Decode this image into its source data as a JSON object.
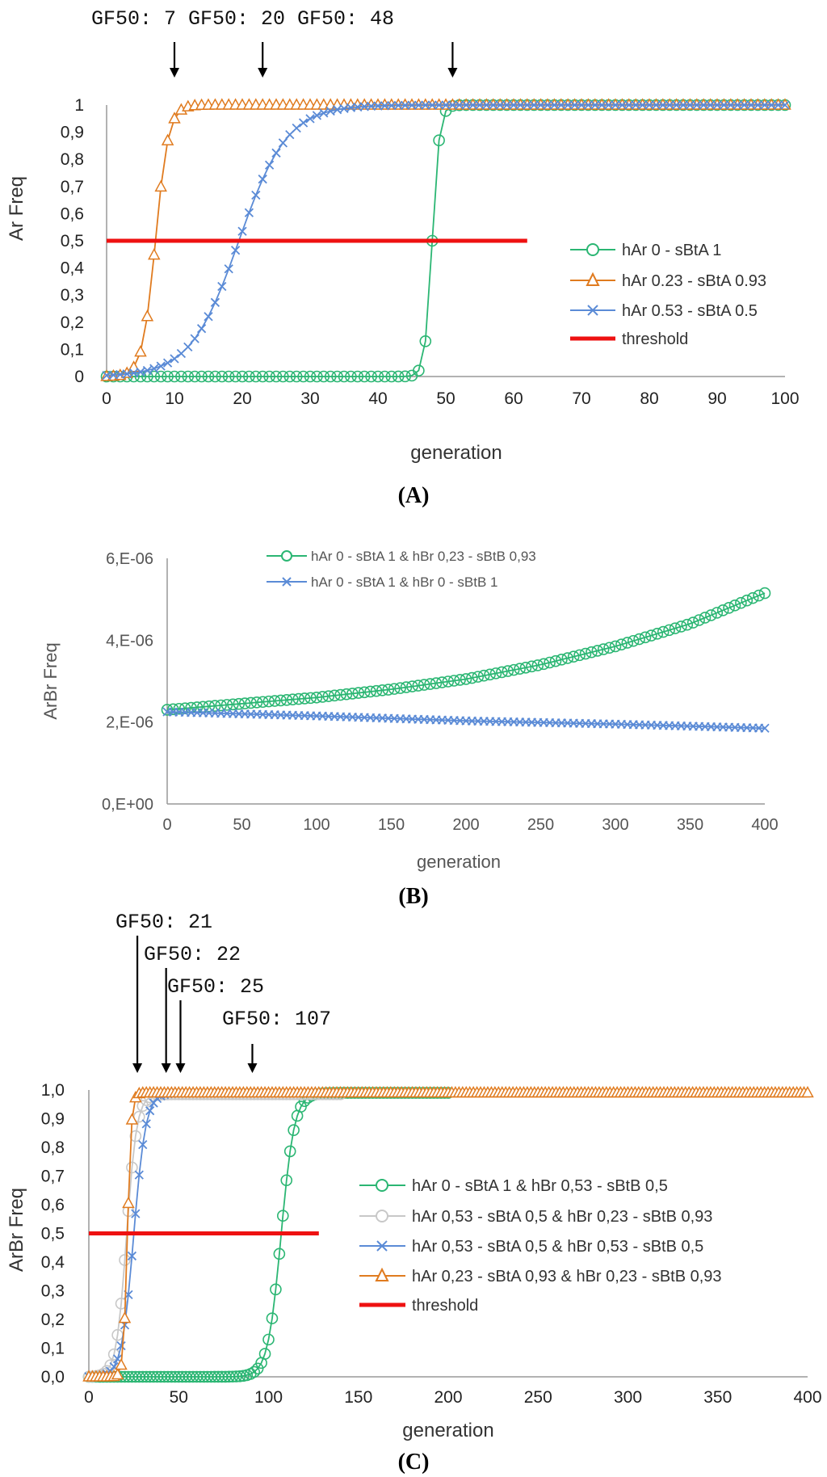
{
  "panels": {
    "a": {
      "label": "(A)"
    },
    "b": {
      "label": "(B)"
    },
    "c": {
      "label": "(C)"
    }
  },
  "chart_data": [
    {
      "panel": "A",
      "type": "line",
      "xlabel": "generation",
      "ylabel": "Ar Freq",
      "xlim": [
        0,
        100
      ],
      "ylim": [
        0,
        1
      ],
      "x_ticks": [
        "0",
        "10",
        "20",
        "30",
        "40",
        "50",
        "60",
        "70",
        "80",
        "90",
        "100"
      ],
      "y_ticks": [
        "0",
        "0,1",
        "0,2",
        "0,3",
        "0,4",
        "0,5",
        "0,6",
        "0,7",
        "0,8",
        "0,9",
        "1"
      ],
      "legend_position": "right",
      "threshold": {
        "name": "threshold",
        "y": 0.5,
        "x_range": [
          0,
          62
        ],
        "color": "#ee1111"
      },
      "annotations": [
        {
          "text": "GF50: 7",
          "x": 10
        },
        {
          "text": "GF50: 20",
          "x": 23
        },
        {
          "text": "GF50: 48",
          "x": 51
        }
      ],
      "annotation_line": "GF50: 7 GF50: 20 GF50: 48",
      "series": [
        {
          "name": "hAr 0 -  sBtA 1",
          "color": "#2bb673",
          "marker": "circle",
          "logistic": {
            "mid": 48,
            "rate": 1.9,
            "max": 1,
            "min": 0
          },
          "x_range": [
            0,
            100
          ]
        },
        {
          "name": "hAr 0.23 - sBtA 0.93",
          "color": "#e07b1f",
          "marker": "triangle",
          "logistic": {
            "mid": 7.2,
            "rate": 1.05,
            "max": 1,
            "min": 0
          },
          "x_range": [
            0,
            100
          ]
        },
        {
          "name": "hAr 0.53 - sBtA 0.5",
          "color": "#5b8bd6",
          "marker": "x",
          "logistic": {
            "mid": 19.5,
            "rate": 0.28,
            "max": 1,
            "min": 0
          },
          "x_range": [
            0,
            100
          ]
        }
      ]
    },
    {
      "panel": "B",
      "type": "line",
      "xlabel": "generation",
      "ylabel": "ArBr Freq",
      "xlim": [
        0,
        400
      ],
      "ylim": [
        0,
        6e-06
      ],
      "x_ticks": [
        "0",
        "50",
        "100",
        "150",
        "200",
        "250",
        "300",
        "350",
        "400"
      ],
      "y_ticks": [
        "0,E+00",
        "2,E-06",
        "4,E-06",
        "6,E-06"
      ],
      "legend_position": "top",
      "series": [
        {
          "name": "hAr 0 - sBtA 1 & hBr 0,23 - sBtB 0,93",
          "color": "#2bb673",
          "marker": "circle",
          "points": [
            [
              0,
              2.3e-06
            ],
            [
              50,
              2.45e-06
            ],
            [
              100,
              2.6e-06
            ],
            [
              150,
              2.8e-06
            ],
            [
              200,
              3.05e-06
            ],
            [
              250,
              3.4e-06
            ],
            [
              300,
              3.85e-06
            ],
            [
              350,
              4.4e-06
            ],
            [
              400,
              5.15e-06
            ]
          ]
        },
        {
          "name": "hAr 0 - sBtA 1 & hBr 0 - sBtB 1",
          "color": "#5b8bd6",
          "marker": "x",
          "points": [
            [
              0,
              2.25e-06
            ],
            [
              100,
              2.15e-06
            ],
            [
              200,
              2.03e-06
            ],
            [
              300,
              1.95e-06
            ],
            [
              400,
              1.85e-06
            ]
          ]
        }
      ]
    },
    {
      "panel": "C",
      "type": "line",
      "xlabel": "generation",
      "ylabel": "ArBr Freq",
      "xlim": [
        0,
        400
      ],
      "ylim": [
        0,
        1
      ],
      "x_ticks": [
        "0",
        "50",
        "100",
        "150",
        "200",
        "250",
        "300",
        "350",
        "400"
      ],
      "y_ticks": [
        "0,0",
        "0,1",
        "0,2",
        "0,3",
        "0,4",
        "0,5",
        "0,6",
        "0,7",
        "0,8",
        "0,9",
        "1,0"
      ],
      "legend_position": "right",
      "threshold": {
        "name": "threshold",
        "y": 0.5,
        "x_range": [
          0,
          128
        ],
        "color": "#ee1111"
      },
      "annotations": [
        {
          "text": "GF50: 21",
          "x": 27
        },
        {
          "text": "GF50: 22",
          "x": 43
        },
        {
          "text": "GF50: 25",
          "x": 51
        },
        {
          "text": "GF50: 107",
          "x": 91
        }
      ],
      "series": [
        {
          "name": "hAr 0 - sBtA 1 & hBr 0,53 - sBtB 0,5",
          "color": "#2bb673",
          "marker": "circle",
          "logistic": {
            "mid": 107,
            "rate": 0.27,
            "max": 0.99,
            "min": 0
          },
          "x_range": [
            0,
            200
          ]
        },
        {
          "name": "hAr 0,53 - sBtA 0,5 & hBr 0,23 - sBtB 0,93",
          "color": "#c8c8c8",
          "marker": "circle",
          "logistic": {
            "mid": 21,
            "rate": 0.35,
            "max": 0.985,
            "min": 0
          },
          "x_range": [
            0,
            140
          ]
        },
        {
          "name": "hAr 0,53 - sBtA 0,5 & hBr 0,53 - sBtB 0,5",
          "color": "#5b8bd6",
          "marker": "x",
          "logistic": {
            "mid": 25,
            "rate": 0.3,
            "max": 0.99,
            "min": 0
          },
          "x_range": [
            0,
            140
          ]
        },
        {
          "name": "hAr 0,23 - sBtA 0,93 & hBr 0,23 - sBtB 0,93",
          "color": "#e07b1f",
          "marker": "triangle",
          "logistic": {
            "mid": 21.5,
            "rate": 0.9,
            "max": 0.99,
            "min": 0
          },
          "x_range": [
            0,
            400
          ]
        }
      ]
    }
  ]
}
